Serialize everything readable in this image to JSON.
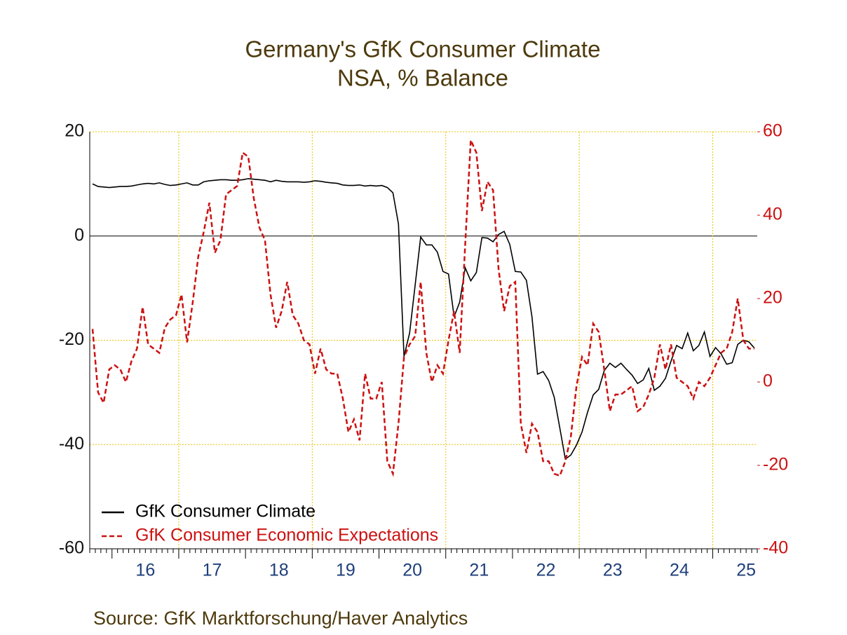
{
  "chart_data": {
    "type": "line",
    "title": "Germany's GfK Consumer Climate",
    "subtitle": "NSA, % Balance",
    "source": "Source:  GfK Marktforschung/Haver Analytics",
    "categories": [
      null,
      null,
      null,
      null,
      null,
      null,
      null,
      null,
      null,
      null,
      "16",
      null,
      null,
      null,
      null,
      null,
      null,
      null,
      null,
      null,
      null,
      null,
      "17",
      null,
      null,
      null,
      null,
      null,
      null,
      null,
      null,
      null,
      null,
      null,
      "18",
      null,
      null,
      null,
      null,
      null,
      null,
      null,
      null,
      null,
      null,
      null,
      "19",
      null,
      null,
      null,
      null,
      null,
      null,
      null,
      null,
      null,
      null,
      null,
      "20",
      null,
      null,
      null,
      null,
      null,
      null,
      null,
      null,
      null,
      null,
      null,
      "21",
      null,
      null,
      null,
      null,
      null,
      null,
      null,
      null,
      null,
      null,
      null,
      "22",
      null,
      null,
      null,
      null,
      null,
      null,
      null,
      null,
      null,
      null,
      null,
      "23",
      null,
      null,
      null,
      null,
      null,
      null,
      null,
      null,
      null,
      null,
      null,
      "24",
      null,
      null,
      null,
      null,
      null,
      null,
      null,
      null,
      null,
      null,
      null,
      "25",
      null
    ],
    "series": [
      {
        "name": "GfK Consumer Climate",
        "color": "#000000",
        "dash": false,
        "values": [
          10,
          9.5,
          9.4,
          9.3,
          9.4,
          9.5,
          9.5,
          9.6,
          9.8,
          10,
          10.1,
          10,
          10.2,
          9.9,
          9.7,
          9.8,
          10,
          10.2,
          9.8,
          9.8,
          10.4,
          10.6,
          10.7,
          10.8,
          10.8,
          10.7,
          10.7,
          10.8,
          11,
          10.9,
          10.8,
          10.7,
          10.4,
          10.7,
          10.5,
          10.4,
          10.4,
          10.4,
          10.3,
          10.4,
          10.6,
          10.5,
          10.3,
          10.2,
          10.1,
          9.8,
          9.7,
          9.7,
          9.8,
          9.6,
          9.7,
          9.6,
          9.7,
          9.3,
          8.3,
          2.3,
          -23.1,
          -18.6,
          -9.4,
          -0.2,
          -1.7,
          -1.7,
          -3.1,
          -6.8,
          -7.3,
          -15.5,
          -12.7,
          -6.1,
          -8.6,
          -7.0,
          -0.3,
          -0.4,
          -1.1,
          0.3,
          0.9,
          -1.6,
          -6.8,
          -6.9,
          -8.5,
          -15.5,
          -26.5,
          -26.0,
          -27.7,
          -30.9,
          -36.8,
          -42.8,
          -42.0,
          -40.1,
          -37.6,
          -33.8,
          -30.5,
          -29.4,
          -25.8,
          -24.4,
          -25.2,
          -24.4,
          -25.6,
          -26.7,
          -28.3,
          -27.6,
          -25.4,
          -29.6,
          -28.8,
          -27.3,
          -24.0,
          -21.0,
          -21.6,
          -18.6,
          -22.0,
          -21.0,
          -18.4,
          -23.1,
          -21.4,
          -22.6,
          -24.6,
          -24.3,
          -20.8,
          -20.0,
          -20.3,
          -21.5
        ]
      },
      {
        "name": "GfK Consumer Economic Expectations",
        "color": "#cc1111",
        "dash": true,
        "axis": "y2",
        "values": [
          12.7,
          -2.5,
          -5,
          3,
          4,
          3,
          0,
          5,
          8,
          18,
          9,
          8,
          7,
          13,
          15,
          16,
          21,
          9.5,
          19,
          30,
          36,
          43,
          31,
          34,
          45,
          46,
          47,
          55,
          54,
          44,
          37,
          34,
          21,
          13,
          17,
          24,
          16,
          14,
          10,
          9,
          2,
          8,
          3,
          2,
          2,
          -4,
          -12,
          -9,
          -14,
          2,
          -4,
          -4,
          0,
          -19,
          -22,
          -10,
          6,
          9,
          11,
          24,
          7,
          0,
          4,
          2,
          10,
          17,
          7,
          33,
          58,
          55,
          41,
          48,
          46,
          27,
          17,
          23,
          24,
          -10,
          -17,
          -10,
          -12,
          -19,
          -19,
          -22,
          -22.5,
          -19,
          -13,
          -1,
          6,
          4,
          14,
          12,
          3,
          -7,
          -3,
          -3,
          -2,
          -1,
          -7,
          -6,
          -3,
          1,
          9,
          3,
          9,
          1,
          0,
          -1,
          -4,
          0,
          -1,
          1,
          4,
          7,
          8,
          12,
          20,
          10,
          8,
          8
        ]
      }
    ],
    "ylim": [
      -60,
      20
    ],
    "yticks": [
      -60,
      -40,
      -20,
      0,
      20
    ],
    "y2lim": [
      -40,
      60
    ],
    "y2ticks": [
      -40,
      -20,
      0,
      20,
      40,
      60
    ],
    "grid": true,
    "legend": "lower left"
  }
}
